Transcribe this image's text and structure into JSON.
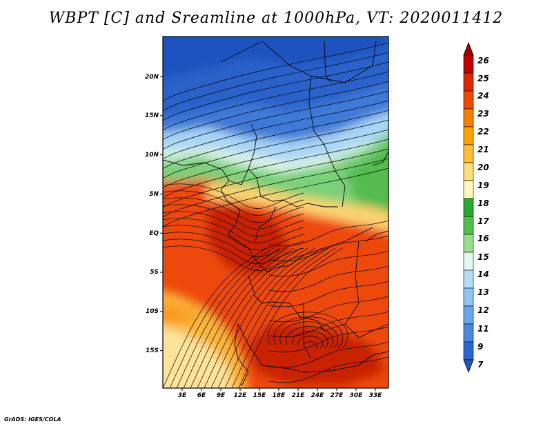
{
  "title": "WBPT [C] and Sreamline at 1000hPa, VT: 2020011412",
  "credit": "GrADS: IGES/COLA",
  "map": {
    "lon_labels": [
      "3E",
      "6E",
      "9E",
      "12E",
      "15E",
      "18E",
      "21E",
      "24E",
      "27E",
      "30E",
      "33E"
    ],
    "lat_labels": [
      "20N",
      "15N",
      "10N",
      "5N",
      "EQ",
      "5S",
      "10S",
      "15S"
    ]
  },
  "colorbar": {
    "levels": [
      "26",
      "25",
      "24",
      "23",
      "22",
      "21",
      "20",
      "19",
      "18",
      "17",
      "16",
      "15",
      "14",
      "13",
      "12",
      "11",
      "9",
      "7"
    ],
    "colors": {
      "over": "#a50000",
      "bands": [
        "#c00000",
        "#dc2800",
        "#ec4a00",
        "#f77e00",
        "#fba200",
        "#ffbf3a",
        "#fede78",
        "#fef8b8",
        "#2aa834",
        "#4fc04c",
        "#98de90",
        "#e4f7ea",
        "#b4dcfa",
        "#8ec4f4",
        "#6aa6ea",
        "#4a88e0",
        "#2a66d2"
      ],
      "under": "#1e56c8"
    }
  }
}
